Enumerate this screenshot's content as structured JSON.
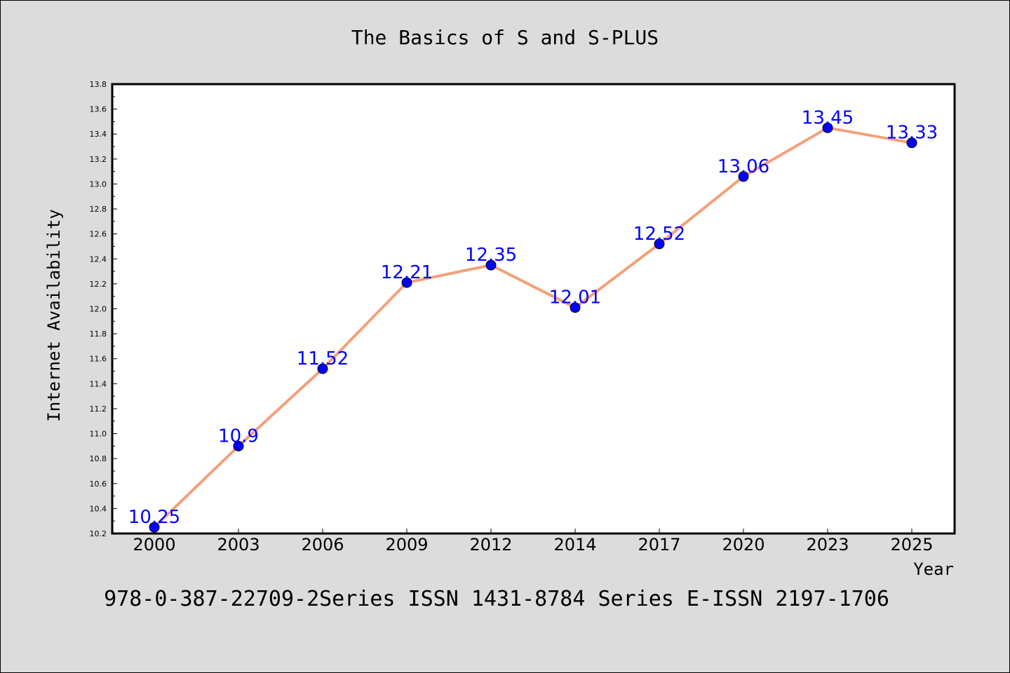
{
  "chart_data": {
    "type": "line",
    "title": "The Basics of S and S-PLUS",
    "subtitle": "978-0-387-22709-2Series ISSN 1431-8784 Series E-ISSN 2197-1706",
    "xlabel": "Year",
    "ylabel": "Internet Availability",
    "categories": [
      "2000",
      "2003",
      "2006",
      "2009",
      "2012",
      "2014",
      "2017",
      "2020",
      "2023",
      "2025"
    ],
    "series": [
      {
        "values": [
          10.25,
          10.9,
          11.52,
          12.21,
          12.35,
          12.01,
          12.52,
          13.06,
          13.45,
          13.33
        ],
        "line_color": "#f4a07a",
        "marker_color": "#0000ff"
      }
    ],
    "data_labels": [
      "10.25",
      "10.9",
      "11.52",
      "12.21",
      "12.35",
      "12.01",
      "12.52",
      "13.06",
      "13.45",
      "13.33"
    ],
    "ylim": [
      10.2,
      13.8
    ],
    "yticks": [
      "10.2",
      "10.4",
      "10.6",
      "10.8",
      "11.0",
      "11.2",
      "11.4",
      "11.6",
      "11.8",
      "12.0",
      "12.2",
      "12.4",
      "12.6",
      "12.8",
      "13.0",
      "13.2",
      "13.4",
      "13.6",
      "13.8"
    ],
    "grid": false,
    "label_color": "#0000ff",
    "background": "#dcdcdc",
    "plot_background": "#ffffff"
  }
}
